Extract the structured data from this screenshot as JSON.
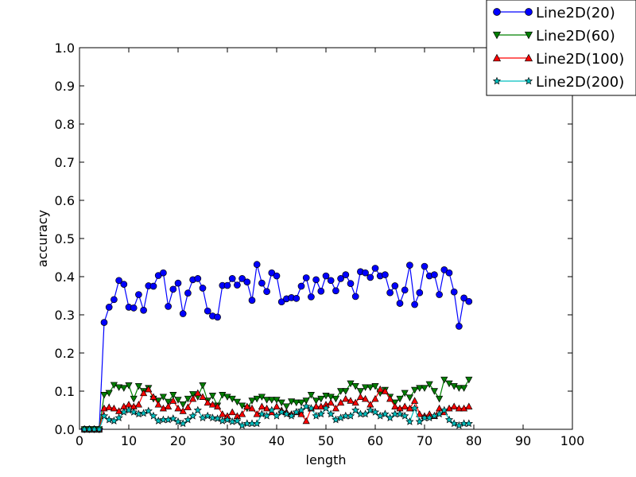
{
  "chart_data": {
    "type": "line",
    "xlabel": "length",
    "ylabel": "accuracy",
    "xlim": [
      0,
      100
    ],
    "ylim": [
      0,
      1.0
    ],
    "x_ticks": [
      "0",
      "10",
      "20",
      "30",
      "40",
      "50",
      "60",
      "70",
      "80",
      "90",
      "100"
    ],
    "y_ticks": [
      "0.0",
      "0.1",
      "0.2",
      "0.3",
      "0.4",
      "0.5",
      "0.6",
      "0.7",
      "0.8",
      "0.9",
      "1.0"
    ],
    "grid": false,
    "legend_position": "top-right",
    "x": [
      1,
      2,
      3,
      4,
      5,
      6,
      7,
      8,
      9,
      10,
      11,
      12,
      13,
      14,
      15,
      16,
      17,
      18,
      19,
      20,
      21,
      22,
      23,
      24,
      25,
      26,
      27,
      28,
      29,
      30,
      31,
      32,
      33,
      34,
      35,
      36,
      37,
      38,
      39,
      40,
      41,
      42,
      43,
      44,
      45,
      46,
      47,
      48,
      49,
      50,
      51,
      52,
      53,
      54,
      55,
      56,
      57,
      58,
      59,
      60,
      61,
      62,
      63,
      64,
      65,
      66,
      67,
      68,
      69,
      70,
      71,
      72,
      73,
      74,
      75,
      76,
      77,
      78,
      79
    ],
    "series": [
      {
        "name": "Line2D(20)",
        "color": "#0000ff",
        "marker": "circle",
        "values": [
          0,
          0,
          0,
          0,
          0.28,
          0.32,
          0.34,
          0.39,
          0.38,
          0.32,
          0.318,
          0.353,
          0.312,
          0.376,
          0.375,
          0.403,
          0.41,
          0.322,
          0.367,
          0.383,
          0.303,
          0.357,
          0.392,
          0.395,
          0.37,
          0.31,
          0.297,
          0.294,
          0.377,
          0.377,
          0.395,
          0.378,
          0.395,
          0.386,
          0.338,
          0.432,
          0.383,
          0.361,
          0.41,
          0.402,
          0.334,
          0.342,
          0.345,
          0.343,
          0.375,
          0.397,
          0.347,
          0.392,
          0.362,
          0.402,
          0.39,
          0.363,
          0.395,
          0.405,
          0.382,
          0.348,
          0.413,
          0.41,
          0.398,
          0.422,
          0.402,
          0.405,
          0.358,
          0.376,
          0.33,
          0.365,
          0.43,
          0.327,
          0.358,
          0.427,
          0.402,
          0.405,
          0.353,
          0.418,
          0.41,
          0.36,
          0.27,
          0.344,
          0.335
        ]
      },
      {
        "name": "Line2D(60)",
        "color": "#008000",
        "marker": "triangle-down",
        "values": [
          0,
          0,
          0,
          0,
          0.09,
          0.095,
          0.116,
          0.11,
          0.108,
          0.115,
          0.08,
          0.113,
          0.1,
          0.108,
          0.08,
          0.075,
          0.085,
          0.072,
          0.09,
          0.077,
          0.065,
          0.08,
          0.092,
          0.085,
          0.115,
          0.075,
          0.088,
          0.062,
          0.09,
          0.085,
          0.08,
          0.072,
          0.062,
          0.055,
          0.075,
          0.08,
          0.085,
          0.077,
          0.077,
          0.077,
          0.07,
          0.06,
          0.073,
          0.07,
          0.07,
          0.075,
          0.09,
          0.075,
          0.08,
          0.088,
          0.085,
          0.08,
          0.1,
          0.1,
          0.12,
          0.113,
          0.1,
          0.11,
          0.11,
          0.113,
          0.095,
          0.103,
          0.085,
          0.07,
          0.08,
          0.095,
          0.083,
          0.103,
          0.108,
          0.108,
          0.118,
          0.1,
          0.08,
          0.13,
          0.12,
          0.113,
          0.108,
          0.108,
          0.13
        ]
      },
      {
        "name": "Line2D(100)",
        "color": "#ff0000",
        "marker": "triangle-up",
        "values": [
          0,
          0,
          0,
          0,
          0.055,
          0.058,
          0.055,
          0.048,
          0.06,
          0.065,
          0.06,
          0.065,
          0.095,
          0.105,
          0.085,
          0.065,
          0.055,
          0.06,
          0.075,
          0.055,
          0.048,
          0.058,
          0.08,
          0.095,
          0.085,
          0.07,
          0.065,
          0.06,
          0.04,
          0.035,
          0.045,
          0.035,
          0.04,
          0.06,
          0.055,
          0.04,
          0.06,
          0.055,
          0.045,
          0.06,
          0.05,
          0.045,
          0.04,
          0.045,
          0.04,
          0.022,
          0.055,
          0.06,
          0.06,
          0.065,
          0.07,
          0.055,
          0.07,
          0.08,
          0.075,
          0.07,
          0.085,
          0.08,
          0.065,
          0.08,
          0.105,
          0.1,
          0.08,
          0.06,
          0.055,
          0.06,
          0.055,
          0.075,
          0.04,
          0.035,
          0.04,
          0.035,
          0.055,
          0.045,
          0.055,
          0.06,
          0.055,
          0.055,
          0.06
        ]
      },
      {
        "name": "Line2D(200)",
        "color": "#00bfbf",
        "marker": "star",
        "values": [
          0,
          0,
          0,
          0,
          0.035,
          0.025,
          0.022,
          0.03,
          0.045,
          0.05,
          0.045,
          0.04,
          0.042,
          0.048,
          0.035,
          0.022,
          0.025,
          0.025,
          0.028,
          0.02,
          0.015,
          0.025,
          0.035,
          0.05,
          0.03,
          0.035,
          0.03,
          0.028,
          0.022,
          0.025,
          0.02,
          0.022,
          0.01,
          0.015,
          0.015,
          0.015,
          0.04,
          0.035,
          0.05,
          0.035,
          0.045,
          0.04,
          0.035,
          0.045,
          0.05,
          0.06,
          0.055,
          0.035,
          0.04,
          0.055,
          0.04,
          0.025,
          0.03,
          0.035,
          0.035,
          0.05,
          0.04,
          0.04,
          0.05,
          0.045,
          0.035,
          0.04,
          0.03,
          0.04,
          0.04,
          0.035,
          0.02,
          0.055,
          0.02,
          0.03,
          0.03,
          0.035,
          0.04,
          0.05,
          0.025,
          0.015,
          0.01,
          0.015,
          0.015
        ]
      }
    ]
  }
}
